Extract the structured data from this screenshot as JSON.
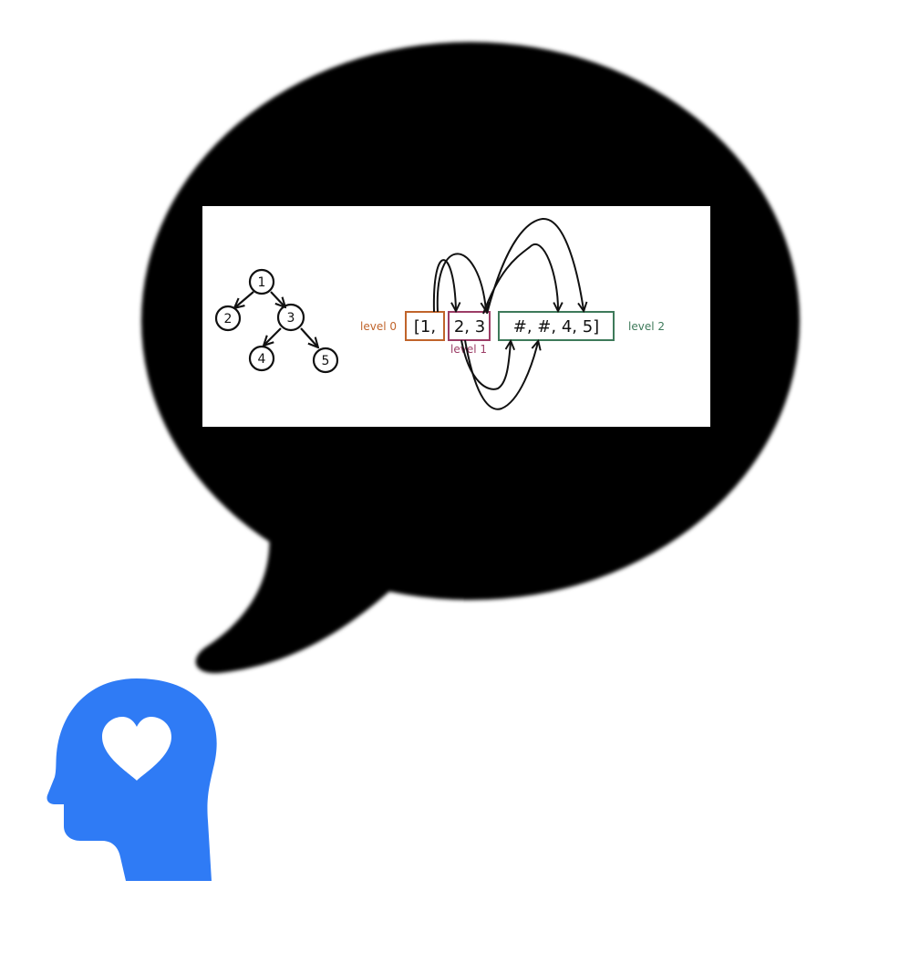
{
  "colors": {
    "background": "#ffffff",
    "bubble": "#000000",
    "panel": "#ffffff",
    "ink": "#111111",
    "head": "#2f7bf5",
    "heart": "#ffffff",
    "level0": "#c0642b",
    "level1": "#9c3d66",
    "level2": "#3e7a5a"
  },
  "icons": {
    "bubble": "speech-bubble-icon",
    "head": "head-with-heart-icon"
  },
  "tree": {
    "nodes": [
      "1",
      "2",
      "3",
      "4",
      "5"
    ],
    "edges": [
      [
        "1",
        "2"
      ],
      [
        "1",
        "3"
      ],
      [
        "3",
        "4"
      ],
      [
        "3",
        "5"
      ]
    ]
  },
  "serialization": {
    "open_text": "[1,",
    "mid_text": "2, 3",
    "tail_text": "#, #, 4, 5]",
    "labels": {
      "level0": "level 0",
      "level1": "level 1",
      "level2": "level 2"
    }
  }
}
